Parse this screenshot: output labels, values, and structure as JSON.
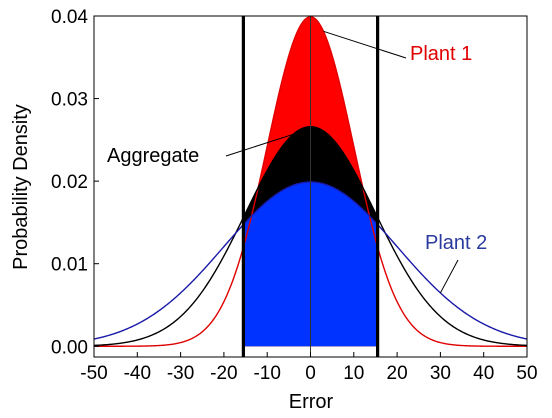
{
  "chart_data": {
    "type": "area",
    "title": "",
    "xlabel": "Error",
    "ylabel": "Probability Density",
    "xlim": [
      -50,
      50
    ],
    "ylim": [
      -0.0013,
      0.04
    ],
    "x_ticks": [
      -50,
      -40,
      -30,
      -20,
      -10,
      0,
      10,
      20,
      30,
      40,
      50
    ],
    "x_tick_labels": [
      "-50",
      "-40",
      "-30",
      "-20",
      "-10",
      "0",
      "10",
      "20",
      "30",
      "40",
      "50"
    ],
    "y_ticks": [
      0,
      0.01,
      0.02,
      0.03,
      0.04
    ],
    "y_tick_labels": [
      "0.00",
      "0.01",
      "0.02",
      "0.03",
      "0.04"
    ],
    "grid": false,
    "legend": "none",
    "series": [
      {
        "name": "Plant 1",
        "distribution": "normal",
        "mean": 0,
        "sd": 10,
        "peak": 0.0399,
        "color": "#e00000",
        "fill_color": "#ff0000"
      },
      {
        "name": "Aggregate",
        "distribution": "normal",
        "mean": 0,
        "sd": 15,
        "peak": 0.0266,
        "color": "#000000",
        "fill_color": "#000000"
      },
      {
        "name": "Plant 2",
        "distribution": "normal",
        "mean": 0,
        "sd": 20,
        "peak": 0.0199,
        "color": "#1a1aa8",
        "fill_color": "#0033ff"
      }
    ],
    "vertical_lines": [
      -15.5,
      0,
      15.5
    ],
    "shaded_interval": [
      -15.5,
      15.5
    ],
    "annotations": [
      {
        "text": "Plant 1",
        "series": "Plant 1",
        "point_x": 3,
        "color": "#e00000"
      },
      {
        "text": "Aggregate",
        "series": "Aggregate",
        "point_x": -4,
        "color": "#000000"
      },
      {
        "text": "Plant 2",
        "series": "Plant 2",
        "point_x": 30,
        "color": "#2b3a9e"
      }
    ]
  }
}
